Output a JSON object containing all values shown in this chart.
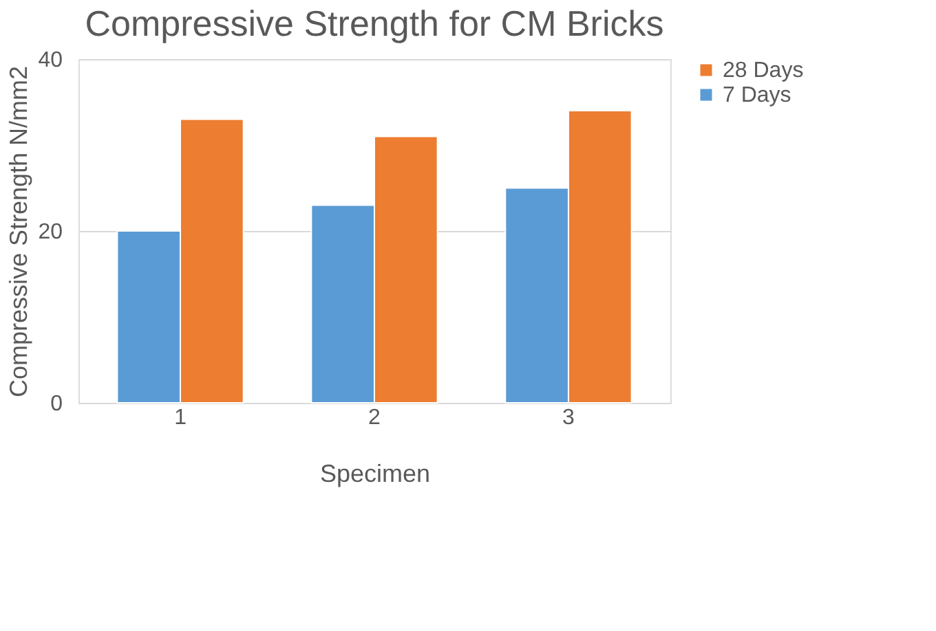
{
  "chart_data": {
    "type": "bar",
    "title": "Compressive Strength for CM Bricks",
    "xlabel": "Specimen",
    "ylabel": "Compressive Strength N/mm2",
    "categories": [
      "1",
      "2",
      "3"
    ],
    "series": [
      {
        "name": "7 Days",
        "color": "#5b9bd5",
        "values": [
          20,
          23,
          25
        ]
      },
      {
        "name": "28 Days",
        "color": "#ed7d31",
        "values": [
          33,
          31,
          34
        ]
      }
    ],
    "ylim": [
      0,
      40
    ],
    "yticks": [
      0,
      20,
      40
    ],
    "grid": "y",
    "legend": "right"
  }
}
